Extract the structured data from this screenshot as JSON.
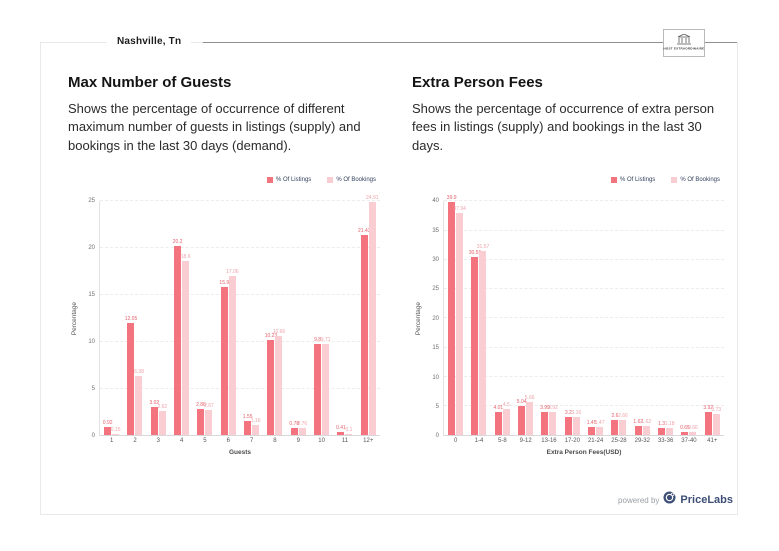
{
  "header": {
    "location": "Nashville, Tn",
    "logo_text": "HOST EXTRAORDINAIRE"
  },
  "footer": {
    "powered_by": "powered by",
    "brand": "PriceLabs"
  },
  "colors": {
    "listings": "#f3747e",
    "bookings": "#f9cdd2",
    "listings_label": "#e4606b",
    "bookings_label": "#eda3ab",
    "legend_text": "#33415c"
  },
  "chart_data": [
    {
      "type": "bar",
      "title": "Max Number of Guests",
      "description": "Shows the percentage of occurrence of different maximum number of guests in listings (supply) and bookings in the last 30 days (demand).",
      "categories": [
        "1",
        "2",
        "3",
        "4",
        "5",
        "6",
        "7",
        "8",
        "9",
        "10",
        "11",
        "12+"
      ],
      "series": [
        {
          "name": "% Of Listings",
          "values": [
            0.92,
            12.05,
            3.02,
            20.2,
            2.86,
            15.9,
            1.55,
            10.23,
            0.78,
            9.8,
            0.41,
            21.43
          ]
        },
        {
          "name": "% Of Bookings",
          "values": [
            0.15,
            6.38,
            2.62,
            18.6,
            2.67,
            17.06,
            1.16,
            10.66,
            0.76,
            9.71,
            0.1,
            24.91
          ]
        }
      ],
      "xlabel": "Guests",
      "ylabel": "Percentage",
      "ylim": [
        0,
        25
      ],
      "yticks": [
        0,
        5,
        10,
        15,
        20,
        25
      ],
      "grid": "dashed-horizontal",
      "legend_position": "top-right"
    },
    {
      "type": "bar",
      "title": "Extra Person Fees",
      "description": "Shows the percentage of occurrence of extra person fees in listings (supply) and bookings in the last 30 days.",
      "categories": [
        "0",
        "1-4",
        "5-8",
        "9-12",
        "13-16",
        "17-20",
        "21-24",
        "25-28",
        "29-32",
        "33-36",
        "37-40",
        "41+"
      ],
      "series": [
        {
          "name": "% Of Listings",
          "values": [
            39.9,
            30.55,
            4.01,
            5.04,
            3.99,
            3.2,
            1.45,
            2.6,
            1.62,
            1.3,
            0.65,
            3.92
          ]
        },
        {
          "name": "% Of Bookings",
          "values": [
            37.94,
            31.57,
            4.5,
            5.66,
            3.92,
            3.16,
            1.47,
            2.66,
            1.62,
            1.18,
            0.66,
            3.73
          ]
        }
      ],
      "xlabel": "Extra Person Fees(USD)",
      "ylabel": "Percentage",
      "ylim": [
        0,
        40
      ],
      "yticks": [
        0,
        5,
        10,
        15,
        20,
        25,
        30,
        35,
        40
      ],
      "grid": "dashed-horizontal",
      "legend_position": "top-right"
    }
  ]
}
